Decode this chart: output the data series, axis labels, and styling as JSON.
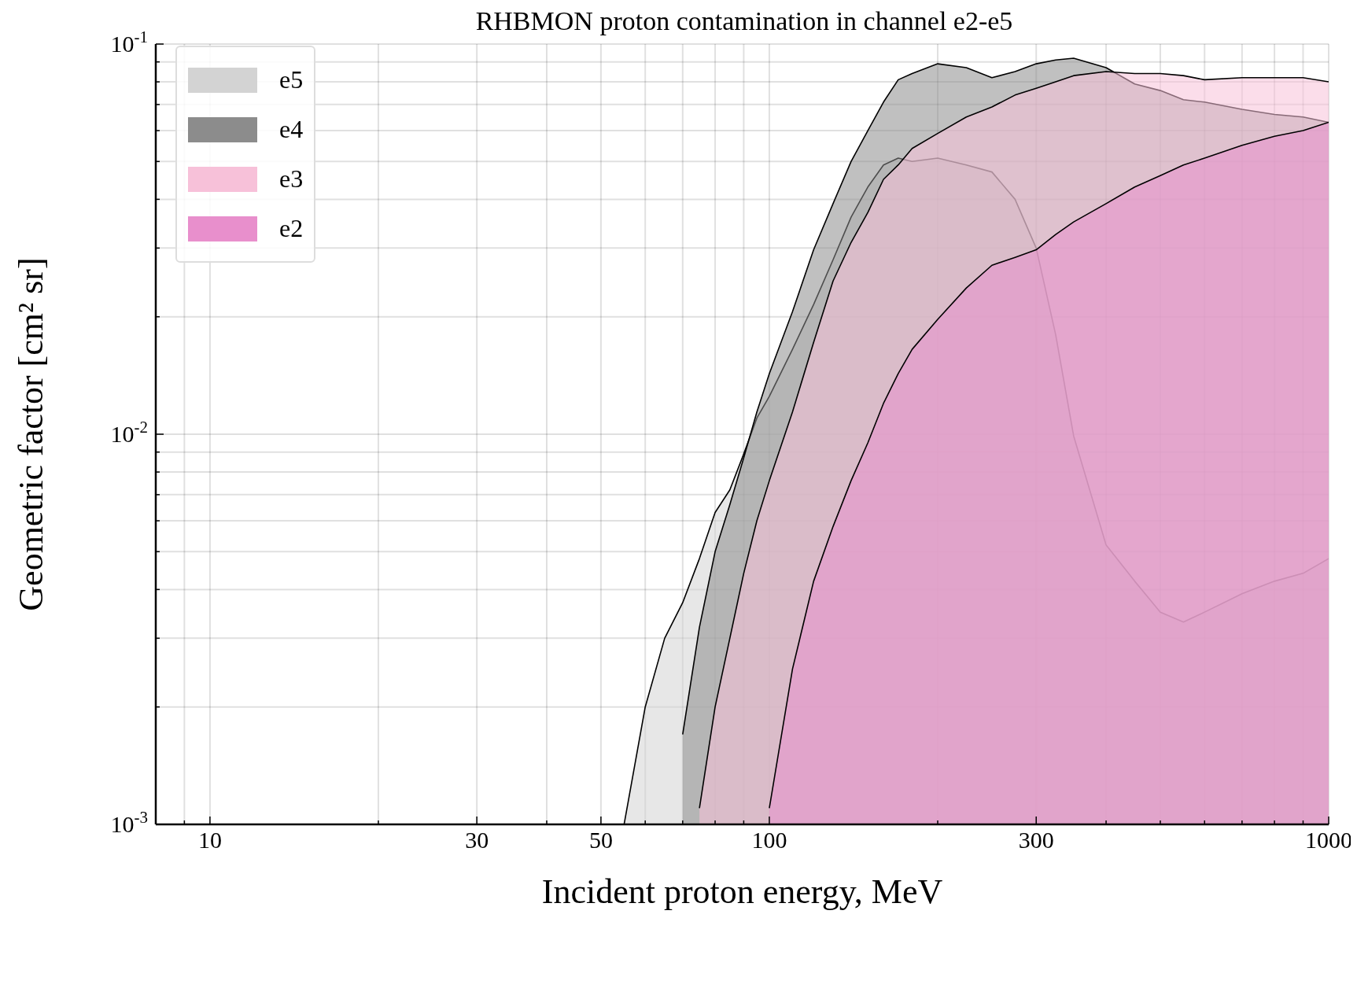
{
  "chart_data": {
    "type": "area",
    "title": "RHBMON proton contamination in channel e2-e5",
    "xlabel": "Incident proton energy, MeV",
    "ylabel": "Geometric factor [cm² sr]",
    "log": "xy",
    "grid": true,
    "legend": "top left",
    "x": [
      55,
      60,
      65,
      70,
      75,
      80,
      85,
      90,
      95,
      100,
      110,
      120,
      130,
      140,
      150,
      160,
      170,
      180,
      200,
      225,
      250,
      275,
      300,
      325,
      350,
      400,
      450,
      500,
      550,
      600,
      700,
      800,
      900,
      1000
    ],
    "xlim": [
      8,
      1000
    ],
    "ylim": [
      0.001,
      0.1
    ],
    "xticks": [
      {
        "value": 9,
        "label": null
      },
      {
        "value": 10,
        "label": "10"
      },
      {
        "value": 20,
        "label": null
      },
      {
        "value": 30,
        "label": "30"
      },
      {
        "value": 40,
        "label": null
      },
      {
        "value": 50,
        "label": "50"
      },
      {
        "value": 60,
        "label": null
      },
      {
        "value": 70,
        "label": null
      },
      {
        "value": 80,
        "label": null
      },
      {
        "value": 90,
        "label": null
      },
      {
        "value": 100,
        "label": "100"
      },
      {
        "value": 200,
        "label": null
      },
      {
        "value": 300,
        "label": "300"
      },
      {
        "value": 400,
        "label": null
      },
      {
        "value": 500,
        "label": null
      },
      {
        "value": 600,
        "label": null
      },
      {
        "value": 700,
        "label": null
      },
      {
        "value": 800,
        "label": null
      },
      {
        "value": 900,
        "label": null
      },
      {
        "value": 1000,
        "label": "1000"
      }
    ],
    "yticks": [
      {
        "value": 0.001,
        "label": "10$^{-3}$"
      },
      {
        "value": 0.002,
        "label": null
      },
      {
        "value": 0.003,
        "label": null
      },
      {
        "value": 0.004,
        "label": null
      },
      {
        "value": 0.005,
        "label": null
      },
      {
        "value": 0.006,
        "label": null
      },
      {
        "value": 0.007,
        "label": null
      },
      {
        "value": 0.008,
        "label": null
      },
      {
        "value": 0.009,
        "label": null
      },
      {
        "value": 0.01,
        "label": "10$^{-2}$"
      },
      {
        "value": 0.02,
        "label": null
      },
      {
        "value": 0.03,
        "label": null
      },
      {
        "value": 0.04,
        "label": null
      },
      {
        "value": 0.05,
        "label": null
      },
      {
        "value": 0.06,
        "label": null
      },
      {
        "value": 0.07,
        "label": null
      },
      {
        "value": 0.08,
        "label": null
      },
      {
        "value": 0.09,
        "label": null
      },
      {
        "value": 0.1,
        "label": "10$^{-1}$"
      }
    ],
    "series": [
      {
        "name": "e5",
        "color": "#d3d3d3",
        "values": [
          0.001,
          0.002,
          0.003,
          0.0037,
          0.0048,
          0.0063,
          0.0072,
          0.0089,
          0.011,
          0.0125,
          0.0165,
          0.0215,
          0.028,
          0.036,
          0.043,
          0.049,
          0.051,
          0.05,
          0.051,
          0.049,
          0.047,
          0.04,
          0.03,
          0.018,
          0.0099,
          0.0052,
          0.0042,
          0.0035,
          0.0033,
          0.0035,
          0.0039,
          0.0042,
          0.0044,
          0.0048
        ]
      },
      {
        "name": "e4",
        "color": "#8c8c8c",
        "values": [
          null,
          null,
          null,
          0.0017,
          0.0032,
          0.005,
          0.0066,
          0.0087,
          0.0114,
          0.0143,
          0.0206,
          0.0297,
          0.039,
          0.05,
          0.06,
          0.071,
          0.081,
          0.084,
          0.089,
          0.087,
          0.082,
          0.085,
          0.089,
          0.091,
          0.092,
          0.087,
          0.079,
          0.076,
          0.072,
          0.071,
          0.068,
          0.066,
          0.065,
          0.063
        ]
      },
      {
        "name": "e3",
        "color": "#f7c1d9",
        "values": [
          null,
          null,
          null,
          null,
          0.0011,
          0.002,
          0.003,
          0.0044,
          0.006,
          0.0076,
          0.0114,
          0.0172,
          0.0247,
          0.031,
          0.037,
          0.045,
          0.049,
          0.054,
          0.059,
          0.065,
          0.069,
          0.074,
          0.077,
          0.08,
          0.083,
          0.085,
          0.084,
          0.084,
          0.083,
          0.081,
          0.082,
          0.082,
          0.082,
          0.08
        ]
      },
      {
        "name": "e2",
        "color": "#e88fcc",
        "values": [
          null,
          null,
          null,
          null,
          null,
          null,
          null,
          null,
          null,
          0.0011,
          0.0025,
          0.0042,
          0.0058,
          0.0076,
          0.0095,
          0.012,
          0.0143,
          0.0165,
          0.0197,
          0.0237,
          0.0271,
          0.0284,
          0.0297,
          0.0325,
          0.035,
          0.039,
          0.043,
          0.046,
          0.049,
          0.051,
          0.055,
          0.058,
          0.06,
          0.063
        ]
      }
    ]
  }
}
